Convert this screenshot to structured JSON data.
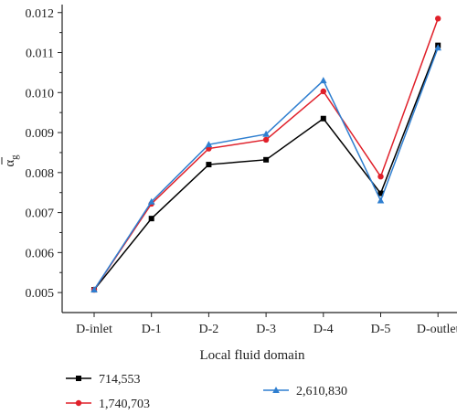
{
  "chart_data": {
    "type": "line",
    "categories": [
      "D-inlet",
      "D-1",
      "D-2",
      "D-3",
      "D-4",
      "D-5",
      "D-outlet"
    ],
    "xlabel": "Local fluid domain",
    "ylabel_base": "α",
    "ylabel_sub": "g",
    "ylim": [
      0.0045,
      0.0122
    ],
    "yticks": [
      "0.005",
      "0.006",
      "0.007",
      "0.008",
      "0.009",
      "0.010",
      "0.011",
      "0.012"
    ],
    "ytick_values": [
      0.005,
      0.006,
      0.007,
      0.008,
      0.009,
      0.01,
      0.011,
      0.012
    ],
    "grid": false,
    "legend_position": "bottom",
    "series": [
      {
        "name": "714,553",
        "color": "#000000",
        "marker": "square",
        "values": [
          0.00507,
          0.00685,
          0.0082,
          0.00832,
          0.00935,
          0.00748,
          0.01118
        ]
      },
      {
        "name": "1,740,703",
        "color": "#e0202a",
        "marker": "circle",
        "values": [
          0.00507,
          0.00722,
          0.0086,
          0.00882,
          0.01003,
          0.0079,
          0.01185
        ]
      },
      {
        "name": "2,610,830",
        "color": "#2f7fd0",
        "marker": "triangle",
        "values": [
          0.00507,
          0.00727,
          0.0087,
          0.00896,
          0.0103,
          0.0073,
          0.01112
        ]
      }
    ]
  }
}
